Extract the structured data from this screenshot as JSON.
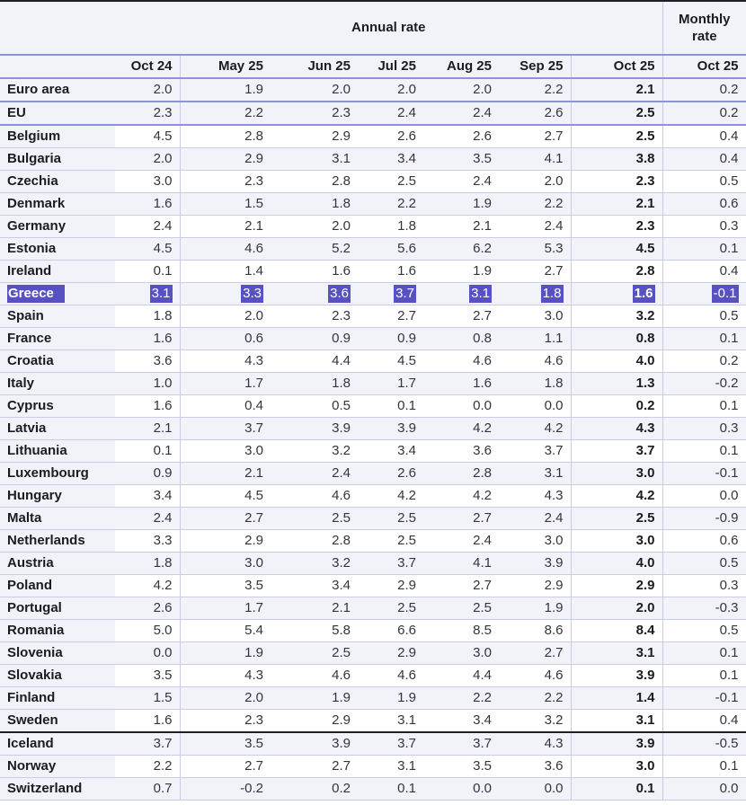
{
  "chart_data": {
    "type": "table",
    "header": {
      "annual_label": "Annual rate",
      "monthly_label": "Monthly rate"
    },
    "columns": [
      "Oct 24",
      "May 25",
      "Jun 25",
      "Jul 25",
      "Aug 25",
      "Sep 25",
      "Oct 25",
      "Oct 25"
    ],
    "rows": [
      {
        "name": "Euro area",
        "values": [
          "2.0",
          "1.9",
          "2.0",
          "2.0",
          "2.0",
          "2.2",
          "2.1",
          "0.2"
        ]
      },
      {
        "name": "EU",
        "values": [
          "2.3",
          "2.2",
          "2.3",
          "2.4",
          "2.4",
          "2.6",
          "2.5",
          "0.2"
        ]
      },
      {
        "name": "Belgium",
        "values": [
          "4.5",
          "2.8",
          "2.9",
          "2.6",
          "2.6",
          "2.7",
          "2.5",
          "0.4"
        ]
      },
      {
        "name": "Bulgaria",
        "values": [
          "2.0",
          "2.9",
          "3.1",
          "3.4",
          "3.5",
          "4.1",
          "3.8",
          "0.4"
        ]
      },
      {
        "name": "Czechia",
        "values": [
          "3.0",
          "2.3",
          "2.8",
          "2.5",
          "2.4",
          "2.0",
          "2.3",
          "0.5"
        ]
      },
      {
        "name": "Denmark",
        "values": [
          "1.6",
          "1.5",
          "1.8",
          "2.2",
          "1.9",
          "2.2",
          "2.1",
          "0.6"
        ]
      },
      {
        "name": "Germany",
        "values": [
          "2.4",
          "2.1",
          "2.0",
          "1.8",
          "2.1",
          "2.4",
          "2.3",
          "0.3"
        ]
      },
      {
        "name": "Estonia",
        "values": [
          "4.5",
          "4.6",
          "5.2",
          "5.6",
          "6.2",
          "5.3",
          "4.5",
          "0.1"
        ]
      },
      {
        "name": "Ireland",
        "values": [
          "0.1",
          "1.4",
          "1.6",
          "1.6",
          "1.9",
          "2.7",
          "2.8",
          "0.4"
        ]
      },
      {
        "name": "Greece",
        "values": [
          "3.1",
          "3.3",
          "3.6",
          "3.7",
          "3.1",
          "1.8",
          "1.6",
          "-0.1"
        ],
        "selected": true
      },
      {
        "name": "Spain",
        "values": [
          "1.8",
          "2.0",
          "2.3",
          "2.7",
          "2.7",
          "3.0",
          "3.2",
          "0.5"
        ]
      },
      {
        "name": "France",
        "values": [
          "1.6",
          "0.6",
          "0.9",
          "0.9",
          "0.8",
          "1.1",
          "0.8",
          "0.1"
        ]
      },
      {
        "name": "Croatia",
        "values": [
          "3.6",
          "4.3",
          "4.4",
          "4.5",
          "4.6",
          "4.6",
          "4.0",
          "0.2"
        ]
      },
      {
        "name": "Italy",
        "values": [
          "1.0",
          "1.7",
          "1.8",
          "1.7",
          "1.6",
          "1.8",
          "1.3",
          "-0.2"
        ]
      },
      {
        "name": "Cyprus",
        "values": [
          "1.6",
          "0.4",
          "0.5",
          "0.1",
          "0.0",
          "0.0",
          "0.2",
          "0.1"
        ]
      },
      {
        "name": "Latvia",
        "values": [
          "2.1",
          "3.7",
          "3.9",
          "3.9",
          "4.2",
          "4.2",
          "4.3",
          "0.3"
        ]
      },
      {
        "name": "Lithuania",
        "values": [
          "0.1",
          "3.0",
          "3.2",
          "3.4",
          "3.6",
          "3.7",
          "3.7",
          "0.1"
        ]
      },
      {
        "name": "Luxembourg",
        "values": [
          "0.9",
          "2.1",
          "2.4",
          "2.6",
          "2.8",
          "3.1",
          "3.0",
          "-0.1"
        ]
      },
      {
        "name": "Hungary",
        "values": [
          "3.4",
          "4.5",
          "4.6",
          "4.2",
          "4.2",
          "4.3",
          "4.2",
          "0.0"
        ]
      },
      {
        "name": "Malta",
        "values": [
          "2.4",
          "2.7",
          "2.5",
          "2.5",
          "2.7",
          "2.4",
          "2.5",
          "-0.9"
        ]
      },
      {
        "name": "Netherlands",
        "values": [
          "3.3",
          "2.9",
          "2.8",
          "2.5",
          "2.4",
          "3.0",
          "3.0",
          "0.6"
        ]
      },
      {
        "name": "Austria",
        "values": [
          "1.8",
          "3.0",
          "3.2",
          "3.7",
          "4.1",
          "3.9",
          "4.0",
          "0.5"
        ]
      },
      {
        "name": "Poland",
        "values": [
          "4.2",
          "3.5",
          "3.4",
          "2.9",
          "2.7",
          "2.9",
          "2.9",
          "0.3"
        ]
      },
      {
        "name": "Portugal",
        "values": [
          "2.6",
          "1.7",
          "2.1",
          "2.5",
          "2.5",
          "1.9",
          "2.0",
          "-0.3"
        ]
      },
      {
        "name": "Romania",
        "values": [
          "5.0",
          "5.4",
          "5.8",
          "6.6",
          "8.5",
          "8.6",
          "8.4",
          "0.5"
        ]
      },
      {
        "name": "Slovenia",
        "values": [
          "0.0",
          "1.9",
          "2.5",
          "2.9",
          "3.0",
          "2.7",
          "3.1",
          "0.1"
        ]
      },
      {
        "name": "Slovakia",
        "values": [
          "3.5",
          "4.3",
          "4.6",
          "4.6",
          "4.4",
          "4.6",
          "3.9",
          "0.1"
        ]
      },
      {
        "name": "Finland",
        "values": [
          "1.5",
          "2.0",
          "1.9",
          "1.9",
          "2.2",
          "2.2",
          "1.4",
          "-0.1"
        ]
      },
      {
        "name": "Sweden",
        "values": [
          "1.6",
          "2.3",
          "2.9",
          "3.1",
          "3.4",
          "3.2",
          "3.1",
          "0.4"
        ]
      },
      {
        "name": "Iceland",
        "values": [
          "3.7",
          "3.5",
          "3.9",
          "3.7",
          "3.7",
          "4.3",
          "3.9",
          "-0.5"
        ],
        "group_start": true
      },
      {
        "name": "Norway",
        "values": [
          "2.2",
          "2.7",
          "2.7",
          "3.1",
          "3.5",
          "3.6",
          "3.0",
          "0.1"
        ]
      },
      {
        "name": "Switzerland",
        "values": [
          "0.7",
          "-0.2",
          "0.2",
          "0.1",
          "0.0",
          "0.0",
          "0.1",
          "0.0"
        ]
      }
    ],
    "colors": {
      "selection_highlight": "#5851c4",
      "accent_border": "#8b93dd",
      "row_divider": "#c9cce2",
      "strong_divider": "#202024",
      "header_background": "#f2f3f9"
    }
  }
}
